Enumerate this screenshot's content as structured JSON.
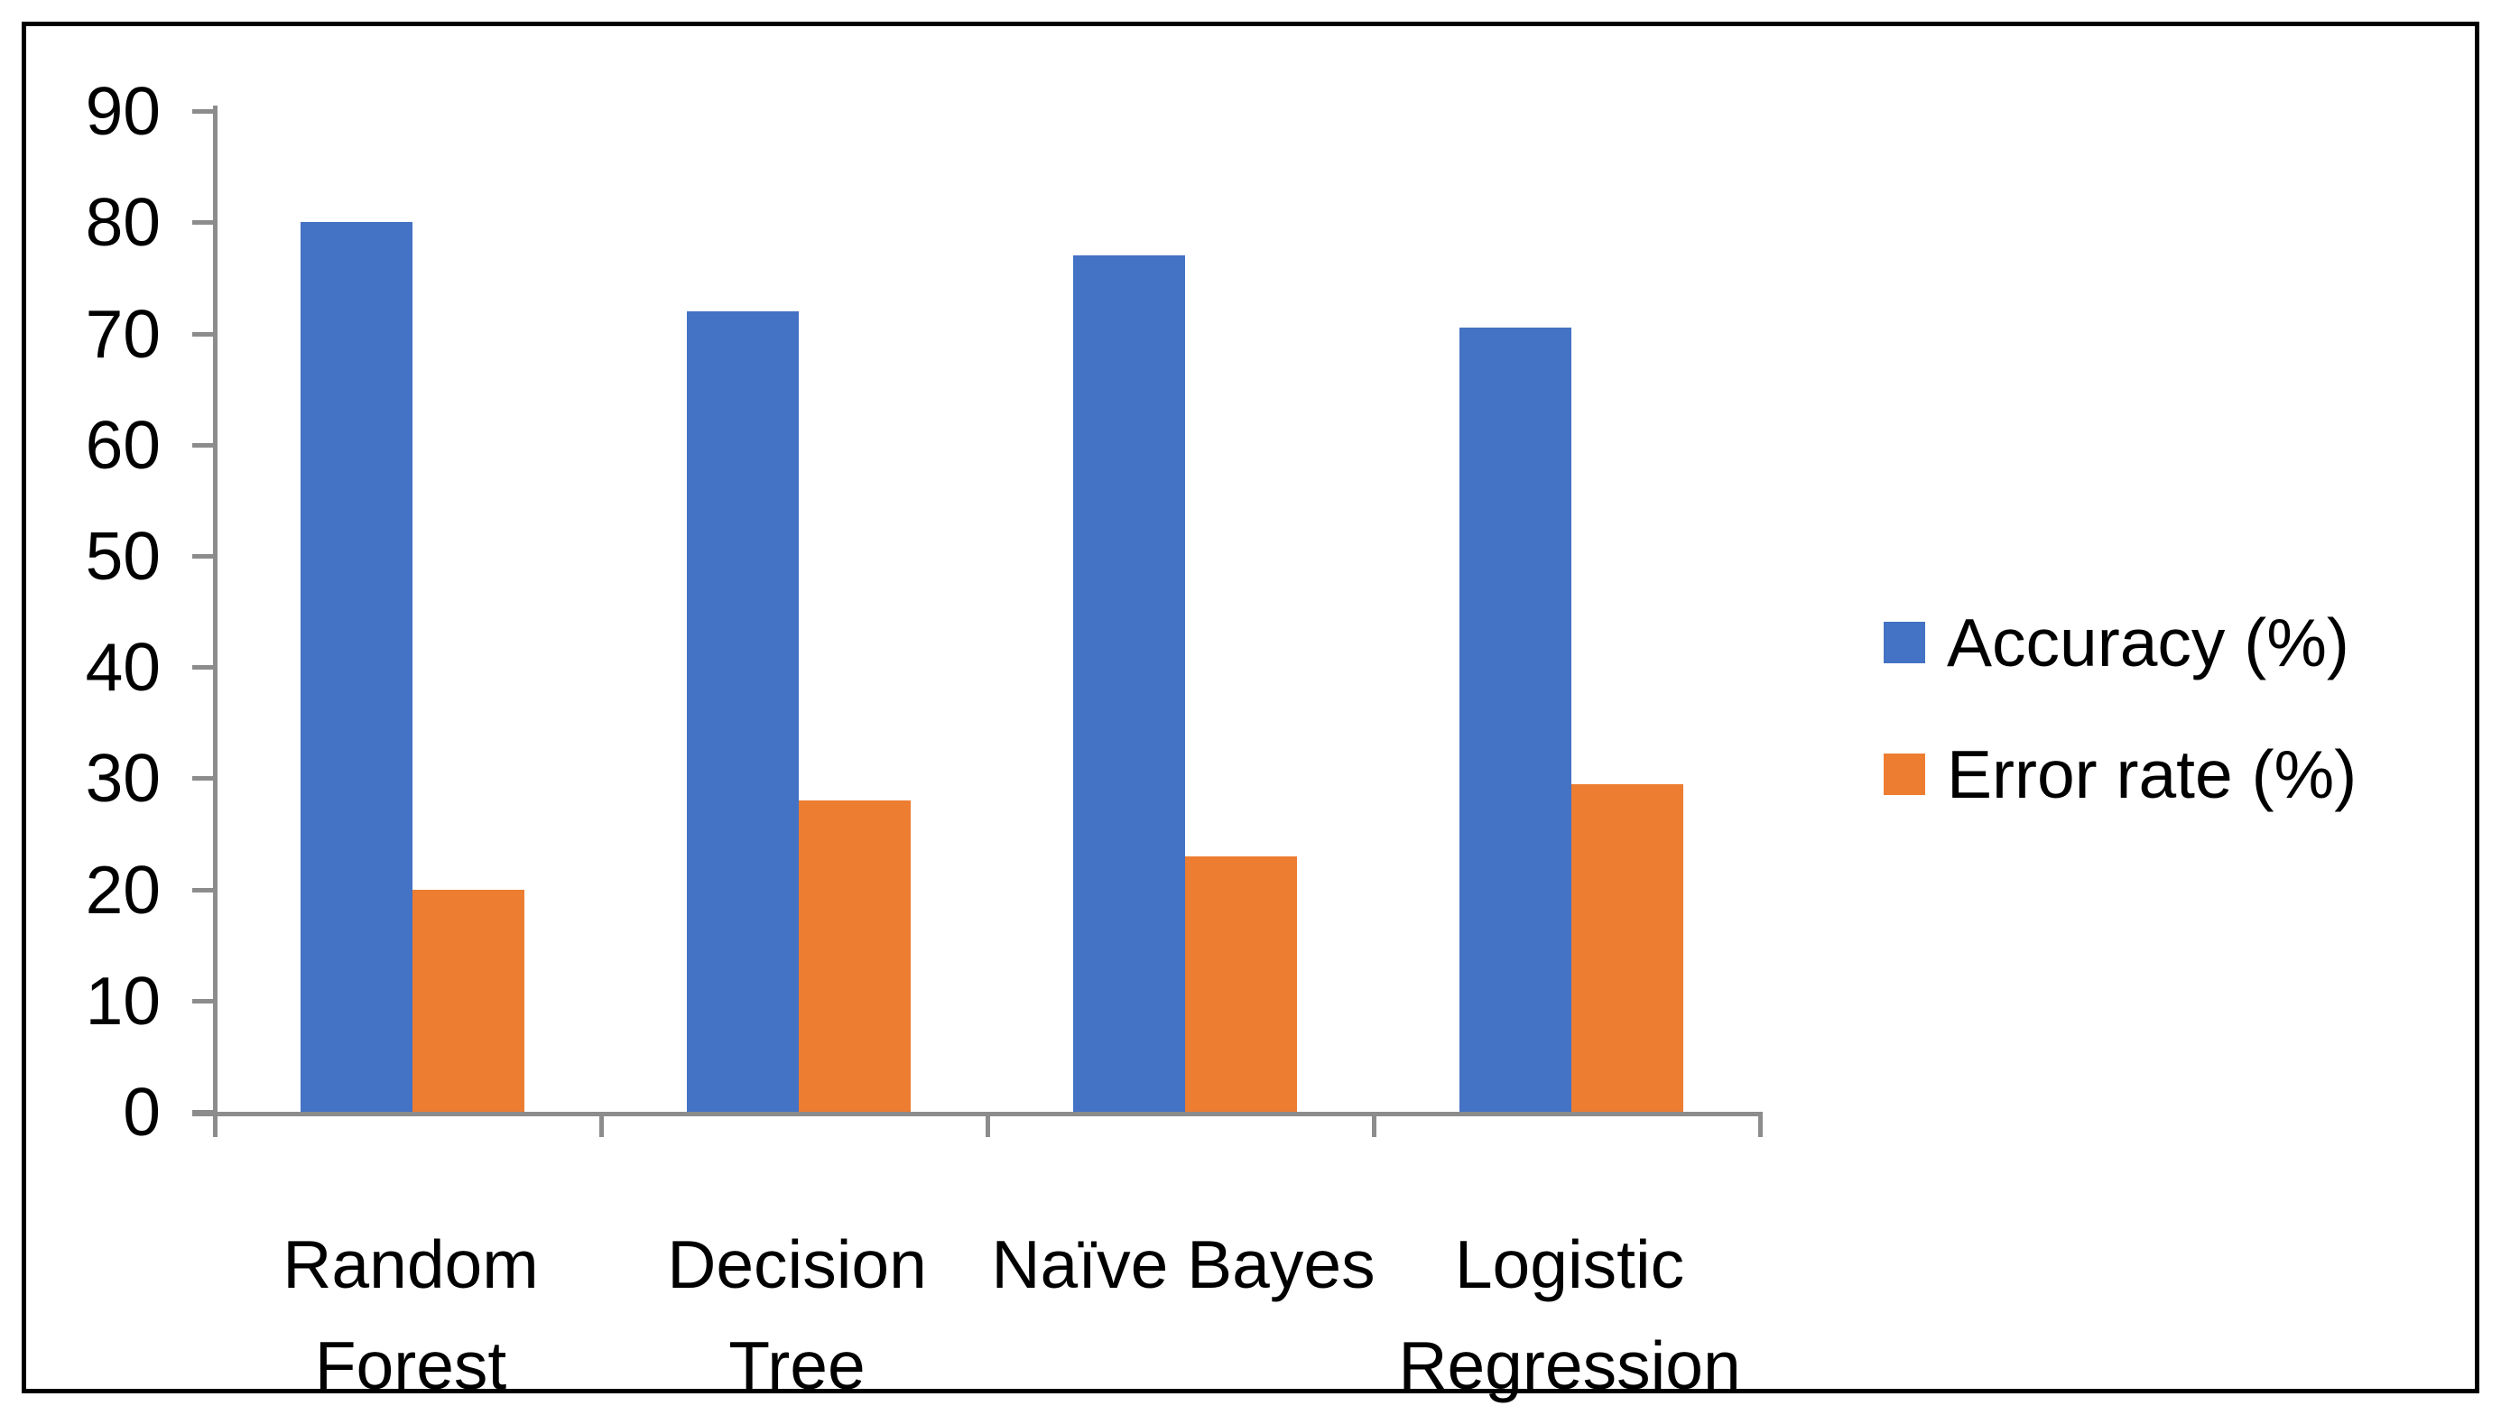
{
  "figure": {
    "background_color": "#ffffff",
    "border_color": "#000000",
    "axis_color": "#8c8c8c",
    "text_color": "#000000"
  },
  "chart_data": {
    "type": "bar",
    "title": "",
    "xlabel": "",
    "ylabel": "",
    "categories": [
      "Random Forest",
      "Decision Tree",
      "Naïve Bayes",
      "Logistic Regression"
    ],
    "category_lines": [
      [
        "Random",
        "Forest"
      ],
      [
        "Decision",
        "Tree"
      ],
      [
        "Naïve Bayes"
      ],
      [
        "Logistic",
        "Regression"
      ]
    ],
    "series": [
      {
        "name": "Accuracy (%)",
        "color": "#4472C4",
        "values": [
          80,
          72,
          77,
          70.5
        ]
      },
      {
        "name": "Error rate (%)",
        "color": "#ED7D31",
        "values": [
          20,
          28,
          23,
          29.5
        ]
      }
    ],
    "ylim": [
      0,
      90
    ],
    "ytick_step": 10,
    "ytick_labels": [
      "0",
      "10",
      "20",
      "30",
      "40",
      "50",
      "60",
      "70",
      "80",
      "90"
    ],
    "grid": false,
    "legend_position": "right"
  }
}
